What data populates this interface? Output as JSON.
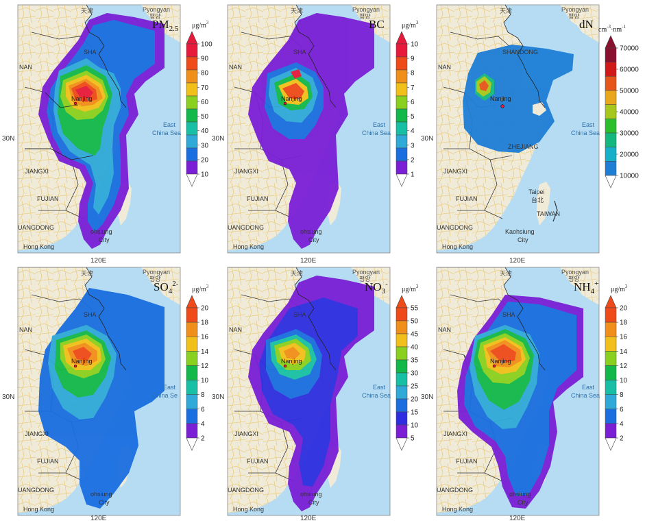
{
  "colors": {
    "ocean": "#b5dcf2",
    "land": "#f0ead8",
    "road": "#eccf86",
    "border": "#222222",
    "sea_text": "#2f6fa8",
    "pm_scale": [
      "#7a1fd6",
      "#1a6ee0",
      "#2ea9d8",
      "#17c0a4",
      "#12b84a",
      "#8ad01e",
      "#f2c01a",
      "#f08f1a",
      "#ee4a1a",
      "#e61a3a"
    ],
    "bc_scale": [
      "#7a1fd6",
      "#1a6ee0",
      "#2ea9d8",
      "#17c0a4",
      "#12b84a",
      "#8ad01e",
      "#f2c01a",
      "#f08f1a",
      "#ee4a1a",
      "#e61a3a"
    ],
    "dn_scale": [
      "#1e7ed6",
      "#16b0c8",
      "#14b87e",
      "#2cbf2c",
      "#a7c81a",
      "#e8a81a",
      "#e6551a",
      "#d01a1a",
      "#8a1030"
    ],
    "ion_scale": [
      "#7a1fd6",
      "#1a6ee0",
      "#2ea9d8",
      "#17c0a4",
      "#12b84a",
      "#8ad01e",
      "#f2c01a",
      "#f08f1a",
      "#ee4a1a"
    ],
    "no3_scale": [
      "#7a1fd6",
      "#2e2ee0",
      "#1a6ee0",
      "#2ea9d8",
      "#17c0a4",
      "#12b84a",
      "#8ad01e",
      "#f2c01a",
      "#f08f1a",
      "#ee4a1a"
    ]
  },
  "map_labels": {
    "pyongyang": "Pyongyan",
    "pyongyang_ko": "평양",
    "tianjin": "天津",
    "shandong": "SHA",
    "shandong_full": "SHANDONG",
    "henan": "NAN",
    "jiangxi": "JIANGXI",
    "fujian": "FUJIAN",
    "guangdong": "UANGDONG",
    "hong_kong": "Hong Kong",
    "kaohsiung_a": "Kaohsiung",
    "kaohsiung_trunc": "ohsiung",
    "kaohsiung_city": "City",
    "east_china_sea_1": "East",
    "east_china_sea_2": "China Sea",
    "east_china_sea_trunc": "China Se",
    "zhejiang": "ZHEJIANG",
    "taipei": "Taipei",
    "taipei_zh": "台北",
    "taiwan": "TAIWAN",
    "nanjing": "Nanjing",
    "lat": "30N",
    "lon": "120E"
  },
  "panels": [
    {
      "id": "pm25",
      "species_main": "PM",
      "species_sub": "2.5",
      "unit_main": "μg/m",
      "unit_sup": "3",
      "ticks": [
        "100",
        "90",
        "80",
        "70",
        "60",
        "50",
        "40",
        "30",
        "20",
        "10"
      ]
    },
    {
      "id": "bc",
      "species_main": "BC",
      "unit_main": "μg/m",
      "unit_sup": "3",
      "ticks": [
        "10",
        "9",
        "8",
        "7",
        "6",
        "5",
        "4",
        "3",
        "2",
        "1"
      ]
    },
    {
      "id": "dn",
      "species_main": "dN",
      "unit_a": "cm",
      "unit_a_sup": "-3",
      "unit_b": "·nm",
      "unit_b_sup": "-1",
      "ticks": [
        "70000",
        "60000",
        "50000",
        "40000",
        "30000",
        "20000",
        "10000"
      ]
    },
    {
      "id": "so4",
      "species_main": "SO",
      "species_sub": "4",
      "species_sup": "2-",
      "unit_main": "μg/m",
      "unit_sup": "3",
      "ticks": [
        "20",
        "18",
        "16",
        "14",
        "12",
        "10",
        "8",
        "6",
        "4",
        "2"
      ]
    },
    {
      "id": "no3",
      "species_main": "NO",
      "species_sub": "3",
      "species_sup": "-",
      "unit_main": "μg/m",
      "unit_sup": "3",
      "ticks": [
        "55",
        "50",
        "45",
        "40",
        "35",
        "30",
        "25",
        "20",
        "15",
        "10",
        "5"
      ]
    },
    {
      "id": "nh4",
      "species_main": "NH",
      "species_sub": "4",
      "species_sup": "+",
      "unit_main": "μg/m",
      "unit_sup": "3",
      "ticks": [
        "20",
        "18",
        "16",
        "14",
        "12",
        "10",
        "8",
        "6",
        "4",
        "2"
      ]
    }
  ]
}
